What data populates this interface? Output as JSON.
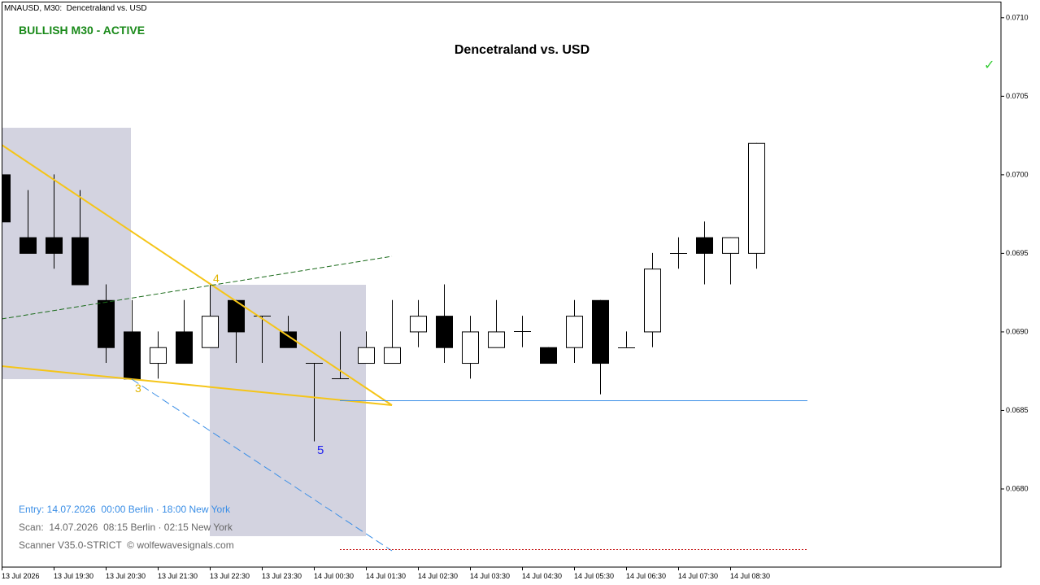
{
  "header": "MNAUSD, M30:  Dencetraland vs. USD",
  "status": "BULLISH M30 - ACTIVE",
  "signal": "✓",
  "chart_data": {
    "type": "candlestick",
    "title": "Dencetraland vs. USD",
    "categories": [
      "13 Jul 2026",
      null,
      "13 Jul 19:30",
      null,
      "13 Jul 20:30",
      null,
      "13 Jul 21:30",
      null,
      "13 Jul 22:30",
      null,
      "13 Jul 23:30",
      null,
      "14 Jul 00:30",
      null,
      "14 Jul 01:30",
      null,
      "14 Jul 02:30",
      null,
      "14 Jul 03:30",
      null,
      "14 Jul 04:30",
      null,
      "14 Jul 05:30",
      null,
      "14 Jul 06:30",
      null,
      "14 Jul 07:30",
      null,
      "14 Jul 08:30",
      null
    ],
    "open": [
      0.07,
      0.0696,
      0.0696,
      0.0696,
      0.0692,
      0.069,
      0.0688,
      0.069,
      0.0689,
      0.0692,
      0.0691,
      0.069,
      0.0688,
      0.0687,
      0.0688,
      0.0688,
      0.069,
      0.0691,
      0.0688,
      0.0689,
      0.069,
      0.0689,
      0.0689,
      0.0692,
      0.0689,
      0.069,
      0.0695,
      0.0696,
      0.0695,
      0.0695
    ],
    "high": [
      0.07,
      0.0699,
      0.07,
      0.0699,
      0.0693,
      0.0692,
      0.069,
      0.0692,
      0.0693,
      0.0692,
      0.0691,
      0.0691,
      0.0688,
      0.069,
      0.069,
      0.0692,
      0.0692,
      0.0693,
      0.0691,
      0.0692,
      0.0691,
      0.0689,
      0.0692,
      0.0692,
      0.069,
      0.0695,
      0.0696,
      0.0697,
      0.0696,
      0.0702
    ],
    "low": [
      0.0697,
      0.0695,
      0.0694,
      0.0693,
      0.0688,
      0.0687,
      0.0687,
      0.0688,
      0.0689,
      0.0688,
      0.0688,
      0.0689,
      0.0683,
      0.0687,
      0.0688,
      0.0688,
      0.0689,
      0.0688,
      0.0687,
      0.0689,
      0.0689,
      0.0688,
      0.0688,
      0.0686,
      0.0689,
      0.0689,
      0.0694,
      0.0693,
      0.0693,
      0.0694
    ],
    "close": [
      0.0697,
      0.0695,
      0.0695,
      0.0693,
      0.0689,
      0.0687,
      0.0689,
      0.0688,
      0.0691,
      0.069,
      0.0691,
      0.0689,
      0.0688,
      0.0687,
      0.0689,
      0.0689,
      0.0691,
      0.0689,
      0.069,
      0.069,
      0.069,
      0.0688,
      0.0691,
      0.0688,
      0.0689,
      0.0694,
      0.0695,
      0.0695,
      0.0696,
      0.0702
    ],
    "up_color": "#ffffff",
    "down_color": "#000000",
    "ylim": [
      0.0675,
      0.0711
    ],
    "yticks": [
      {
        "value": 0.071,
        "label": "0.0710"
      },
      0.0705,
      {
        "value": 0.07,
        "label": "0.0700"
      },
      0.0695,
      {
        "value": 0.069,
        "label": "0.0690"
      },
      0.0685,
      {
        "value": 0.068,
        "label": "0.0680"
      }
    ],
    "annotations": [
      "4",
      "3",
      "5"
    ]
  },
  "footer": {
    "entry": "Entry: 14.07.2026  00:00 Berlin · 18:00 New York",
    "scan": "Scan:  14.07.2026  08:15 Berlin · 02:15 New York",
    "credit": "Scanner V35.0-STRICT  © wolfewavesignals.com"
  }
}
